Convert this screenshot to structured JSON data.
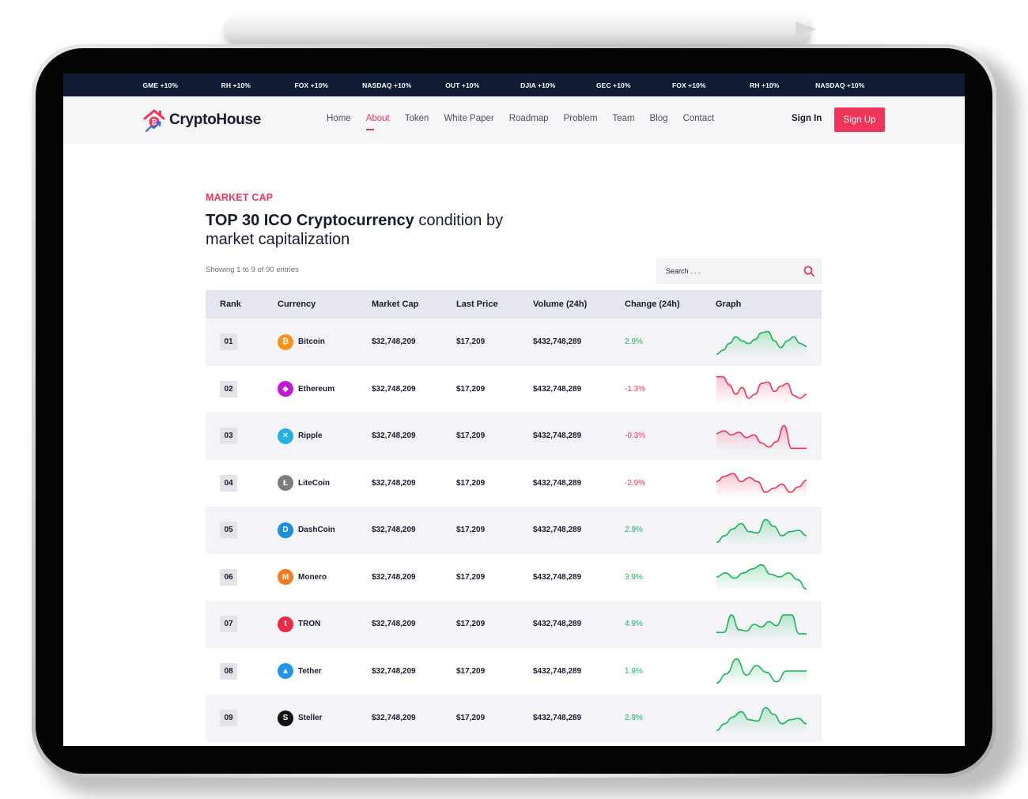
{
  "ticker": [
    "GME +10%",
    "RH +10%",
    "FOX +10%",
    "NASDAQ +10%",
    "OUT +10%",
    "DJIA +10%",
    "GEC +10%",
    "FOX +10%",
    "RH +10%",
    "NASDAQ +10%"
  ],
  "brand": {
    "name": "CryptoHouse"
  },
  "nav": {
    "links": [
      "Home",
      "About",
      "Token",
      "White Paper",
      "Roadmap",
      "Problem",
      "Team",
      "Blog",
      "Contact"
    ],
    "active": "About",
    "signin": "Sign In",
    "signup": "Sign Up"
  },
  "section": {
    "eyebrow": "MARKET CAP",
    "title_bold": "TOP 30 ICO Cryptocurrency",
    "title_rest": " condition by market capitalization",
    "entries": "Showing 1 to 9 of 90 entries",
    "search_placeholder": "Search . . ."
  },
  "table": {
    "headers": [
      "Rank",
      "Currency",
      "Market Cap",
      "Last Price",
      "Volume (24h)",
      "Change (24h)",
      "Graph"
    ],
    "rows": [
      {
        "rank": "01",
        "name": "Bitcoin",
        "icon": "bitcoin-icon",
        "color": "#f7931a",
        "glyph": "₿",
        "cap": "$32,748,209",
        "price": "$17,209",
        "volume": "$432,748,289",
        "change": "2.9%",
        "trend": "up"
      },
      {
        "rank": "02",
        "name": "Ethereum",
        "icon": "ethereum-icon",
        "color": "#c316d8",
        "glyph": "◆",
        "cap": "$32,748,209",
        "price": "$17,209",
        "volume": "$432,748,289",
        "change": "-1.3%",
        "trend": "down"
      },
      {
        "rank": "03",
        "name": "Ripple",
        "icon": "ripple-icon",
        "color": "#24b1e0",
        "glyph": "✕",
        "cap": "$32,748,209",
        "price": "$17,209",
        "volume": "$432,748,289",
        "change": "-0.3%",
        "trend": "down"
      },
      {
        "rank": "04",
        "name": "LiteCoin",
        "icon": "litecoin-icon",
        "color": "#7d7d7d",
        "glyph": "Ł",
        "cap": "$32,748,209",
        "price": "$17,209",
        "volume": "$432,748,289",
        "change": "-2.9%",
        "trend": "down"
      },
      {
        "rank": "05",
        "name": "DashCoin",
        "icon": "dashcoin-icon",
        "color": "#1c8ee0",
        "glyph": "D",
        "cap": "$32,748,209",
        "price": "$17,209",
        "volume": "$432,748,289",
        "change": "2.9%",
        "trend": "up"
      },
      {
        "rank": "06",
        "name": "Monero",
        "icon": "monero-icon",
        "color": "#f47b20",
        "glyph": "M",
        "cap": "$32,748,209",
        "price": "$17,209",
        "volume": "$432,748,289",
        "change": "3.9%",
        "trend": "up"
      },
      {
        "rank": "07",
        "name": "TRON",
        "icon": "tron-icon",
        "color": "#eb2b46",
        "glyph": "t",
        "cap": "$32,748,209",
        "price": "$17,209",
        "volume": "$432,748,289",
        "change": "4.9%",
        "trend": "up"
      },
      {
        "rank": "08",
        "name": "Tether",
        "icon": "tether-icon",
        "color": "#2496e8",
        "glyph": "▲",
        "cap": "$32,748,209",
        "price": "$17,209",
        "volume": "$432,748,289",
        "change": "1.9%",
        "trend": "up"
      },
      {
        "rank": "09",
        "name": "Steller",
        "icon": "steller-icon",
        "color": "#111111",
        "glyph": "S",
        "cap": "$32,748,209",
        "price": "$17,209",
        "volume": "$432,748,289",
        "change": "2.9%",
        "trend": "up"
      }
    ]
  },
  "colors": {
    "accent": "#f0355a",
    "up": "#19b55a",
    "down": "#f0355a",
    "navy": "#0f1b35"
  }
}
